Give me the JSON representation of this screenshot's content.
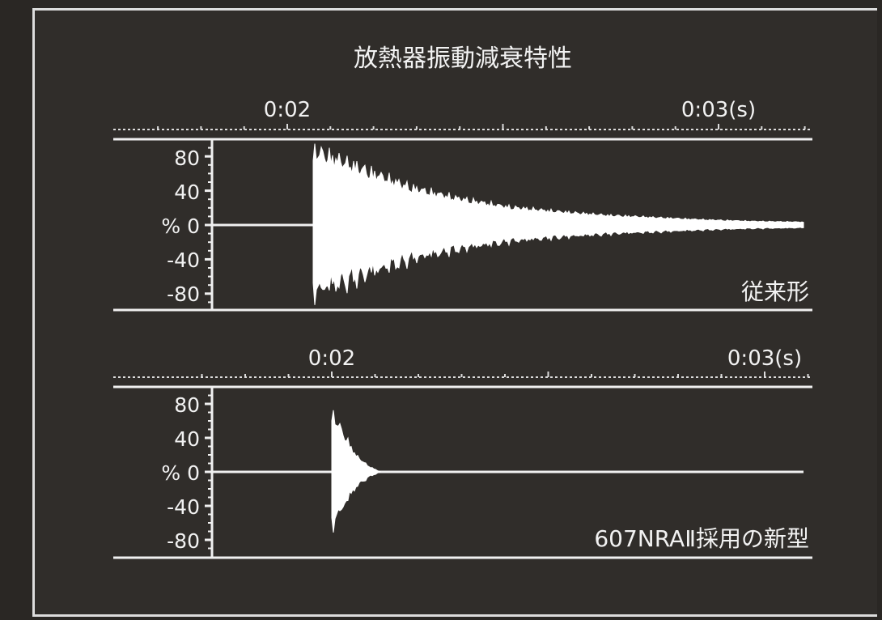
{
  "chart_data": [
    {
      "type": "line",
      "title": "放熱器振動減衰特性",
      "xlabel": "",
      "ylabel": "%",
      "x_tick_labels": [
        "0:02",
        "0:03(s)"
      ],
      "y_tick_labels": [
        "80",
        "40",
        "% 0",
        "-40",
        "-80"
      ],
      "ylim": [
        -100,
        100
      ],
      "series": [
        {
          "name": "従来形",
          "envelope": {
            "onset_time": 0.0206,
            "peak_percent": 100,
            "values_percent": [
              100,
              75,
              50,
              35,
              24,
              18,
              13,
              10,
              7,
              5,
              4
            ]
          }
        }
      ],
      "annotation": "従来形"
    },
    {
      "type": "line",
      "xlabel": "",
      "ylabel": "%",
      "x_tick_labels": [
        "0:02",
        "0:03(s)"
      ],
      "y_tick_labels": [
        "80",
        "40",
        "% 0",
        "-40",
        "-80"
      ],
      "ylim": [
        -100,
        100
      ],
      "series": [
        {
          "name": "607NRAⅡ採用の新型",
          "envelope": {
            "onset_time": 0.02,
            "peak_percent": 80,
            "values_percent": [
              80,
              50,
              22,
              8,
              0
            ]
          }
        }
      ],
      "annotation": "607NRAⅡ採用の新型"
    }
  ]
}
